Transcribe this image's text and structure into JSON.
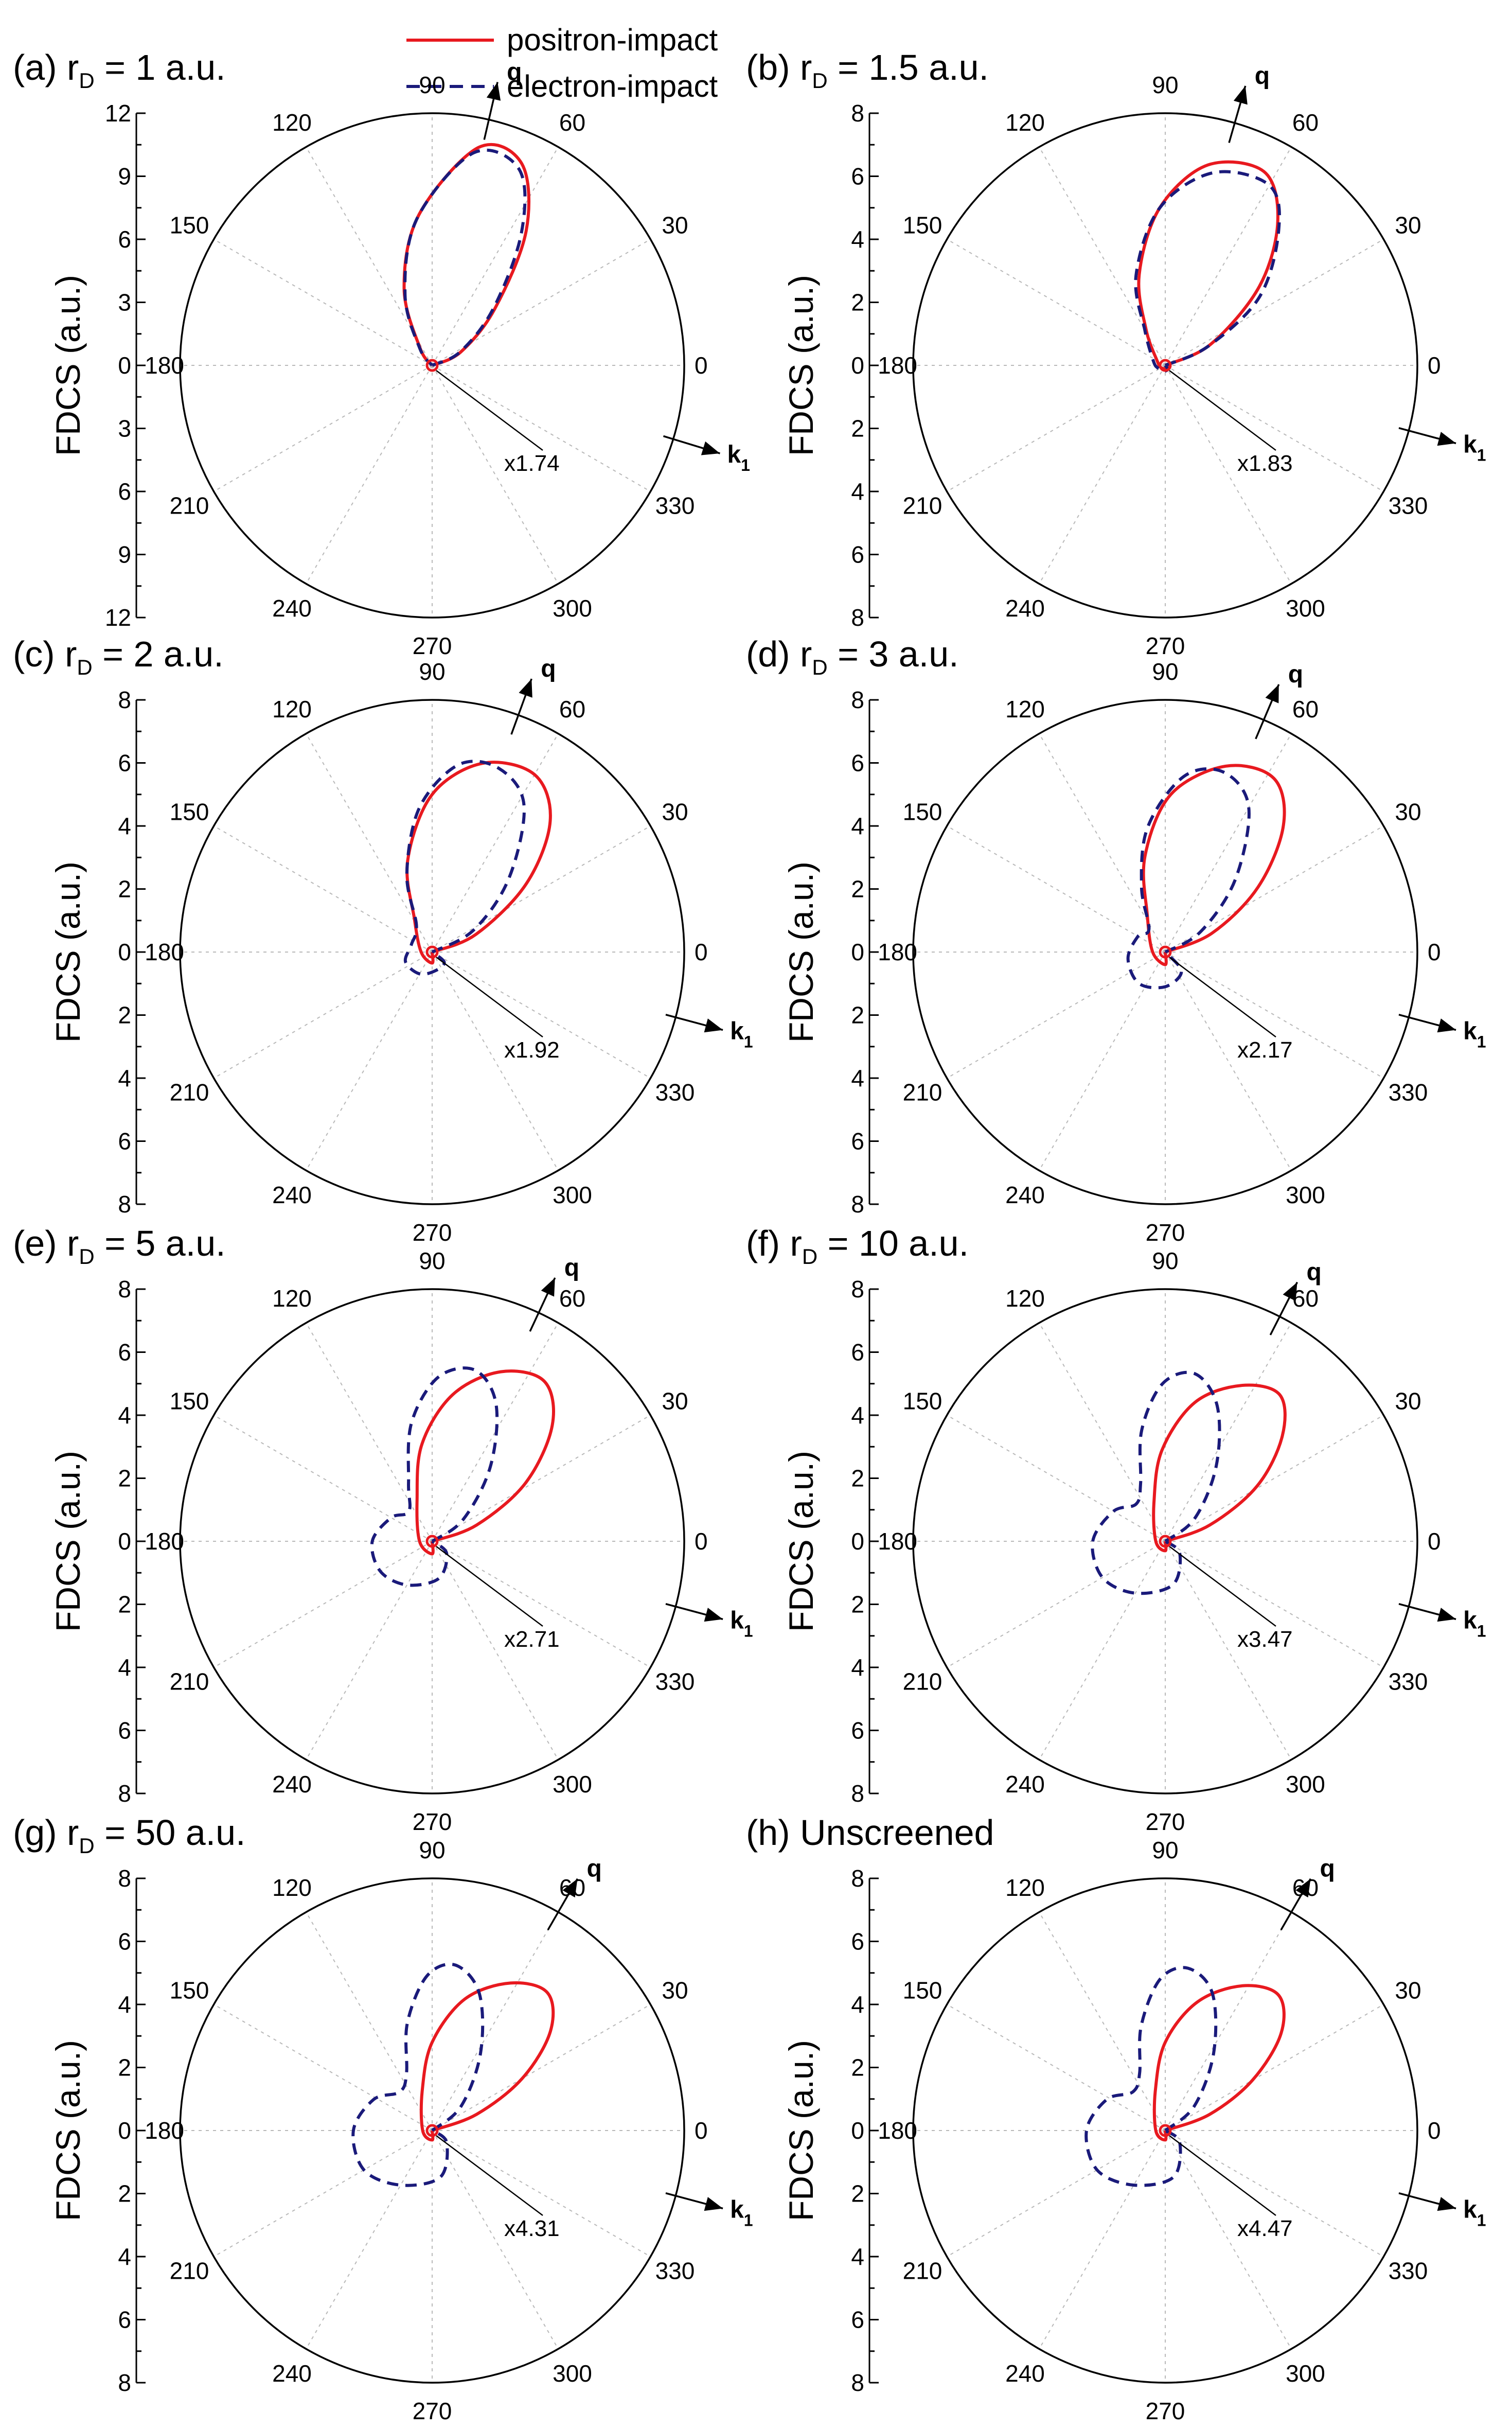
{
  "legend": [
    {
      "name": "positron-impact",
      "color": "#e8191f",
      "style": "solid"
    },
    {
      "name": "electron-impact",
      "color": "#1a1a7a",
      "style": "dashed"
    }
  ],
  "angle_labels": [
    "90",
    "60",
    "30",
    "0",
    "330",
    "300",
    "270",
    "240",
    "210",
    "180",
    "150",
    "120"
  ],
  "y_axis_title": "FDCS (a.u.)",
  "vector_labels": {
    "q": "q",
    "k": "k",
    "k_sub": "1"
  },
  "chart_data": [
    {
      "type": "polar",
      "panel": "(a)",
      "title_prefix": "(a) r",
      "title_sub": "D",
      "title_suffix": " = 1 a.u.",
      "radial_max": 12,
      "ticks": [
        "0",
        "3",
        "6",
        "9",
        "12"
      ],
      "ylabel": "FDCS (a.u.)",
      "scale_factor": "x1.74",
      "q_angle_deg": 77,
      "k1_angle_deg": -17,
      "series": [
        {
          "name": "positron-impact",
          "points": [
            [
              0,
              0
            ],
            [
              25,
              1.5
            ],
            [
              42,
              4.0
            ],
            [
              55,
              7.8
            ],
            [
              66,
              10.5
            ],
            [
              78,
              10.6
            ],
            [
              95,
              7.2
            ],
            [
              110,
              3.9
            ],
            [
              125,
              1.0
            ],
            [
              180,
              0
            ]
          ]
        },
        {
          "name": "electron-impact",
          "points": [
            [
              0,
              0
            ],
            [
              26,
              1.5
            ],
            [
              43,
              4.0
            ],
            [
              56,
              7.6
            ],
            [
              66,
              10.2
            ],
            [
              79,
              10.3
            ],
            [
              96,
              7.0
            ],
            [
              111,
              3.6
            ],
            [
              126,
              1.0
            ],
            [
              180,
              0
            ]
          ]
        }
      ]
    },
    {
      "type": "polar",
      "panel": "(b)",
      "title_prefix": "(b) r",
      "title_sub": "D",
      "title_suffix": " = 1.5 a.u.",
      "radial_max": 8,
      "ticks": [
        "0",
        "2",
        "4",
        "6",
        "8"
      ],
      "ylabel": "FDCS (a.u.)",
      "scale_factor": "x1.83",
      "q_angle_deg": 74,
      "k1_angle_deg": -15,
      "series": [
        {
          "name": "positron-impact",
          "points": [
            [
              0,
              0
            ],
            [
              25,
              1.6
            ],
            [
              40,
              3.9
            ],
            [
              52,
              5.8
            ],
            [
              63,
              6.9
            ],
            [
              78,
              6.5
            ],
            [
              92,
              5.0
            ],
            [
              106,
              3.0
            ],
            [
              118,
              1.3
            ],
            [
              150,
              0.3
            ],
            [
              210,
              0.15
            ],
            [
              270,
              0.1
            ],
            [
              330,
              0.1
            ],
            [
              360,
              0
            ]
          ]
        },
        {
          "name": "electron-impact",
          "points": [
            [
              0,
              0
            ],
            [
              24,
              1.5
            ],
            [
              36,
              3.7
            ],
            [
              50,
              5.6
            ],
            [
              60,
              6.6
            ],
            [
              76,
              6.3
            ],
            [
              92,
              5.0
            ],
            [
              108,
              3.0
            ],
            [
              120,
              1.3
            ],
            [
              160,
              0.4
            ],
            [
              200,
              0.25
            ],
            [
              250,
              0.2
            ],
            [
              300,
              0.15
            ],
            [
              360,
              0
            ]
          ]
        }
      ]
    },
    {
      "type": "polar",
      "panel": "(c)",
      "title_prefix": "(c) r",
      "title_sub": "D",
      "title_suffix": " = 2 a.u.",
      "radial_max": 8,
      "ticks": [
        "0",
        "2",
        "4",
        "6",
        "8"
      ],
      "ylabel": "FDCS (a.u.)",
      "scale_factor": "x1.92",
      "q_angle_deg": 70,
      "k1_angle_deg": -15,
      "series": [
        {
          "name": "positron-impact",
          "points": [
            [
              0,
              0
            ],
            [
              22,
              1.5
            ],
            [
              36,
              3.7
            ],
            [
              48,
              5.6
            ],
            [
              60,
              6.5
            ],
            [
              75,
              6.2
            ],
            [
              90,
              5.0
            ],
            [
              105,
              3.0
            ],
            [
              118,
              1.2
            ],
            [
              180,
              0.35
            ],
            [
              270,
              0.35
            ],
            [
              360,
              0
            ]
          ]
        },
        {
          "name": "electron-impact",
          "points": [
            [
              0,
              0
            ],
            [
              28,
              1.5
            ],
            [
              44,
              3.4
            ],
            [
              58,
              5.5
            ],
            [
              70,
              6.2
            ],
            [
              82,
              6.0
            ],
            [
              95,
              4.6
            ],
            [
              108,
              2.6
            ],
            [
              120,
              1.0
            ],
            [
              160,
              0.7
            ],
            [
              200,
              0.9
            ],
            [
              240,
              0.8
            ],
            [
              280,
              0.6
            ],
            [
              320,
              0.5
            ],
            [
              360,
              0
            ]
          ]
        }
      ]
    },
    {
      "type": "polar",
      "panel": "(d)",
      "title_prefix": "(d) r",
      "title_sub": "D",
      "title_suffix": " = 3 a.u.",
      "radial_max": 8,
      "ticks": [
        "0",
        "2",
        "4",
        "6",
        "8"
      ],
      "ylabel": "FDCS (a.u.)",
      "scale_factor": "x2.17",
      "q_angle_deg": 67,
      "k1_angle_deg": -15,
      "series": [
        {
          "name": "positron-impact",
          "points": [
            [
              0,
              0
            ],
            [
              22,
              1.6
            ],
            [
              35,
              3.6
            ],
            [
              47,
              5.5
            ],
            [
              58,
              6.5
            ],
            [
              72,
              6.2
            ],
            [
              88,
              5.0
            ],
            [
              102,
              3.1
            ],
            [
              116,
              1.3
            ],
            [
              180,
              0.4
            ],
            [
              270,
              0.4
            ],
            [
              360,
              0
            ]
          ]
        },
        {
          "name": "electron-impact",
          "points": [
            [
              0,
              0
            ],
            [
              30,
              1.3
            ],
            [
              46,
              3.2
            ],
            [
              60,
              5.3
            ],
            [
              72,
              6.0
            ],
            [
              84,
              5.6
            ],
            [
              98,
              4.0
            ],
            [
              110,
              2.2
            ],
            [
              125,
              0.9
            ],
            [
              150,
              1.0
            ],
            [
              190,
              1.2
            ],
            [
              230,
              1.3
            ],
            [
              270,
              1.1
            ],
            [
              310,
              0.8
            ],
            [
              360,
              0
            ]
          ]
        }
      ]
    },
    {
      "type": "polar",
      "panel": "(e)",
      "title_prefix": "(e) r",
      "title_sub": "D",
      "title_suffix": " = 5 a.u.",
      "radial_max": 8,
      "ticks": [
        "0",
        "2",
        "4",
        "6",
        "8"
      ],
      "ylabel": "FDCS (a.u.)",
      "scale_factor": "x2.71",
      "q_angle_deg": 65,
      "k1_angle_deg": -15,
      "series": [
        {
          "name": "positron-impact",
          "points": [
            [
              0,
              0
            ],
            [
              20,
              1.5
            ],
            [
              32,
              3.5
            ],
            [
              44,
              5.3
            ],
            [
              55,
              6.2
            ],
            [
              68,
              5.8
            ],
            [
              82,
              4.7
            ],
            [
              96,
              3.1
            ],
            [
              110,
              1.4
            ],
            [
              180,
              0.4
            ],
            [
              270,
              0.4
            ],
            [
              360,
              0
            ]
          ]
        },
        {
          "name": "electron-impact",
          "points": [
            [
              0,
              0
            ],
            [
              35,
              1.2
            ],
            [
              52,
              3.0
            ],
            [
              65,
              4.8
            ],
            [
              76,
              5.6
            ],
            [
              88,
              5.2
            ],
            [
              100,
              3.8
            ],
            [
              112,
              2.0
            ],
            [
              128,
              1.2
            ],
            [
              150,
              1.5
            ],
            [
              180,
              1.9
            ],
            [
              210,
              1.9
            ],
            [
              240,
              1.6
            ],
            [
              280,
              1.2
            ],
            [
              320,
              0.6
            ],
            [
              360,
              0
            ]
          ]
        }
      ]
    },
    {
      "type": "polar",
      "panel": "(f)",
      "title_prefix": "(f) r",
      "title_sub": "D",
      "title_suffix": " = 10 a.u.",
      "radial_max": 8,
      "ticks": [
        "0",
        "2",
        "4",
        "6",
        "8"
      ],
      "ylabel": "FDCS (a.u.)",
      "scale_factor": "x3.47",
      "q_angle_deg": 63,
      "k1_angle_deg": -15,
      "series": [
        {
          "name": "positron-impact",
          "points": [
            [
              0,
              0
            ],
            [
              20,
              1.5
            ],
            [
              31,
              3.4
            ],
            [
              42,
              5.0
            ],
            [
              52,
              5.9
            ],
            [
              64,
              5.5
            ],
            [
              78,
              4.5
            ],
            [
              92,
              2.9
            ],
            [
              106,
              1.3
            ],
            [
              180,
              0.3
            ],
            [
              270,
              0.3
            ],
            [
              360,
              0
            ]
          ]
        },
        {
          "name": "electron-impact",
          "points": [
            [
              0,
              0
            ],
            [
              38,
              1.2
            ],
            [
              56,
              2.9
            ],
            [
              69,
              4.6
            ],
            [
              80,
              5.4
            ],
            [
              91,
              5.0
            ],
            [
              102,
              3.6
            ],
            [
              113,
              2.0
            ],
            [
              128,
              1.5
            ],
            [
              150,
              1.9
            ],
            [
              180,
              2.3
            ],
            [
              210,
              2.3
            ],
            [
              240,
              1.9
            ],
            [
              280,
              1.4
            ],
            [
              320,
              0.6
            ],
            [
              360,
              0
            ]
          ]
        }
      ]
    },
    {
      "type": "polar",
      "panel": "(g)",
      "title_prefix": "(g) r",
      "title_sub": "D",
      "title_suffix": " = 50 a.u.",
      "radial_max": 8,
      "ticks": [
        "0",
        "2",
        "4",
        "6",
        "8"
      ],
      "ylabel": "FDCS (a.u.)",
      "scale_factor": "x4.31",
      "q_angle_deg": 60,
      "k1_angle_deg": -15,
      "series": [
        {
          "name": "positron-impact",
          "points": [
            [
              0,
              0
            ],
            [
              20,
              1.5
            ],
            [
              30,
              3.3
            ],
            [
              40,
              4.9
            ],
            [
              50,
              5.7
            ],
            [
              62,
              5.3
            ],
            [
              76,
              4.3
            ],
            [
              90,
              2.8
            ],
            [
              104,
              1.3
            ],
            [
              180,
              0.3
            ],
            [
              270,
              0.3
            ],
            [
              360,
              0
            ]
          ]
        },
        {
          "name": "electron-impact",
          "points": [
            [
              0,
              0
            ],
            [
              40,
              1.2
            ],
            [
              58,
              2.9
            ],
            [
              71,
              4.6
            ],
            [
              82,
              5.3
            ],
            [
              92,
              4.9
            ],
            [
              103,
              3.5
            ],
            [
              114,
              2.0
            ],
            [
              130,
              1.6
            ],
            [
              152,
              2.1
            ],
            [
              180,
              2.5
            ],
            [
              210,
              2.5
            ],
            [
              240,
              2.0
            ],
            [
              280,
              1.5
            ],
            [
              320,
              0.6
            ],
            [
              360,
              0
            ]
          ]
        }
      ]
    },
    {
      "type": "polar",
      "panel": "(h)",
      "title_prefix": "(h) Unscreened",
      "title_sub": "",
      "title_suffix": "",
      "radial_max": 8,
      "ticks": [
        "0",
        "2",
        "4",
        "6",
        "8"
      ],
      "ylabel": "FDCS (a.u.)",
      "scale_factor": "x4.47",
      "q_angle_deg": 60,
      "k1_angle_deg": -15,
      "series": [
        {
          "name": "positron-impact",
          "points": [
            [
              0,
              0
            ],
            [
              20,
              1.5
            ],
            [
              30,
              3.2
            ],
            [
              40,
              4.8
            ],
            [
              50,
              5.6
            ],
            [
              62,
              5.2
            ],
            [
              76,
              4.2
            ],
            [
              90,
              2.8
            ],
            [
              104,
              1.3
            ],
            [
              180,
              0.3
            ],
            [
              270,
              0.3
            ],
            [
              360,
              0
            ]
          ]
        },
        {
          "name": "electron-impact",
          "points": [
            [
              0,
              0
            ],
            [
              40,
              1.2
            ],
            [
              58,
              2.9
            ],
            [
              71,
              4.6
            ],
            [
              82,
              5.2
            ],
            [
              92,
              4.8
            ],
            [
              103,
              3.4
            ],
            [
              114,
              2.0
            ],
            [
              130,
              1.6
            ],
            [
              152,
              2.1
            ],
            [
              180,
              2.5
            ],
            [
              210,
              2.5
            ],
            [
              240,
              2.0
            ],
            [
              280,
              1.5
            ],
            [
              320,
              0.6
            ],
            [
              360,
              0
            ]
          ]
        }
      ]
    }
  ]
}
